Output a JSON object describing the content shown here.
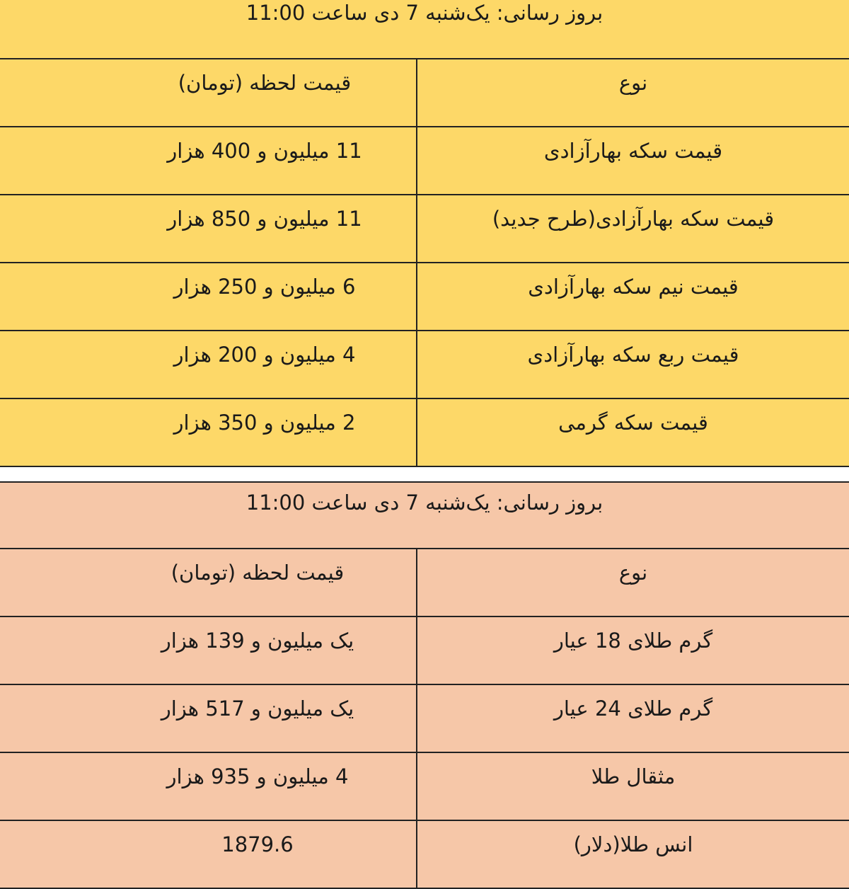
{
  "coins_table": {
    "updated": "بروز رسانی: یک‌شنبه 7 دی ساعت 11:00",
    "headers": {
      "type": "نوع",
      "price": "قیمت لحظه (تومان)"
    },
    "rows": [
      {
        "type": "قیمت سکه بهارآزادی",
        "price": "11 میلیون و 400 هزار"
      },
      {
        "type": "قیمت سکه بهارآزادی(طرح جدید)",
        "price": "11 میلیون و 850 هزار"
      },
      {
        "type": "قیمت نیم سکه بهارآزادی",
        "price": "6 میلیون و 250 هزار"
      },
      {
        "type": "قیمت ربع سکه بهارآزادی",
        "price": "4 میلیون و 200 هزار"
      },
      {
        "type": "قیمت سکه گرمی",
        "price": "2 میلیون و 350 هزار"
      }
    ],
    "bg_color": "#FDD868"
  },
  "gold_table": {
    "updated": "بروز رسانی: یک‌شنبه 7 دی ساعت 11:00",
    "headers": {
      "type": "نوع",
      "price": "قیمت لحظه (تومان)"
    },
    "rows": [
      {
        "type": "گرم طلای 18 عیار",
        "price": "یک میلیون و 139 هزار"
      },
      {
        "type": "گرم طلای 24 عیار",
        "price": "یک میلیون و 517 هزار"
      },
      {
        "type": "مثقال طلا",
        "price": "4 میلیون و 935 هزار"
      },
      {
        "type": "انس طلا(دلار)",
        "price": "1879.6"
      }
    ],
    "bg_color": "#F6C7A8"
  }
}
